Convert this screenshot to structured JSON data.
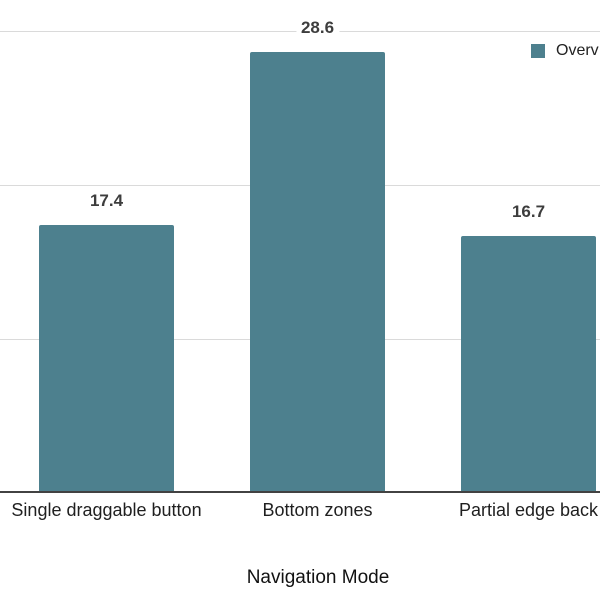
{
  "chart_data": {
    "type": "bar",
    "title": "",
    "xlabel": "Navigation Mode",
    "ylabel": "",
    "categories": [
      "Single draggable button",
      "Bottom zones",
      "Partial edge back"
    ],
    "values": [
      17.4,
      28.6,
      16.7
    ],
    "legend": {
      "label": "Overv",
      "position": "top-right",
      "clipped_at_right_edge": true
    },
    "ylim": [
      0,
      32
    ],
    "gridline_values": [
      10,
      20,
      30
    ],
    "grid": "horizontal",
    "y_axis_labels_visible": false
  },
  "colors": {
    "bar": "#4d808e",
    "gridline": "#dadada",
    "axis_line": "#424242",
    "value_label": "#3d3d3d",
    "category_label": "#1f1f1f",
    "axis_title": "#111111",
    "background": "#ffffff"
  }
}
